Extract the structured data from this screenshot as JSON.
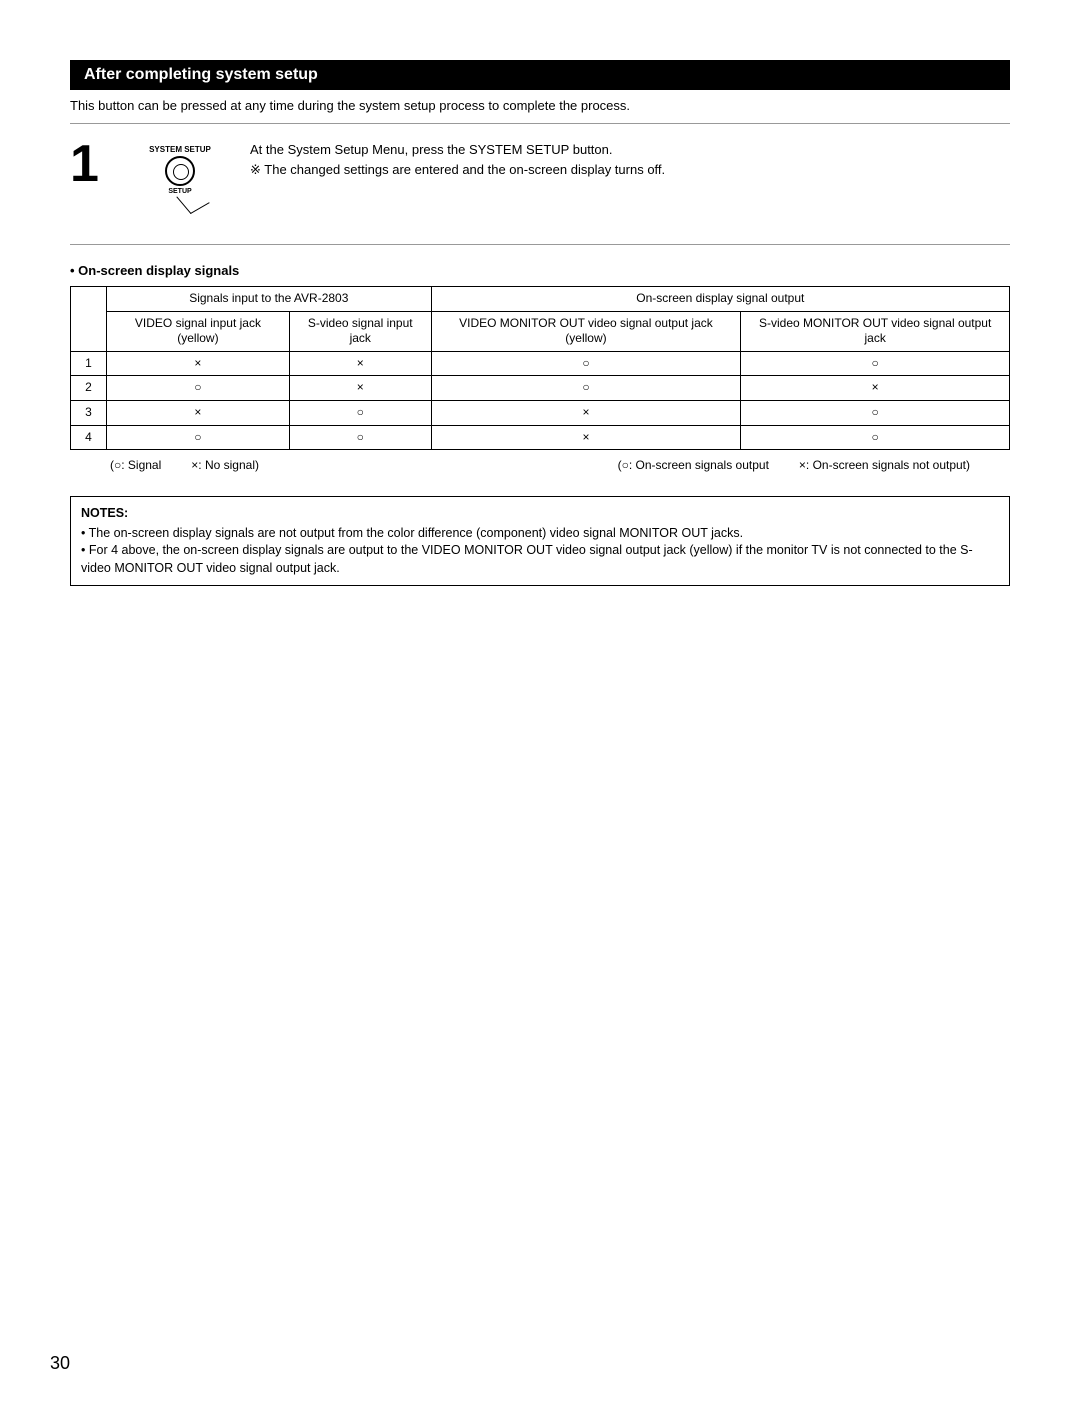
{
  "section_title": "After completing system setup",
  "intro": "This button can be pressed at any time during the system setup process to complete the process.",
  "step": {
    "number": "1",
    "remote": {
      "top_label": "SYSTEM\nSETUP",
      "bottom_label": "SETUP"
    },
    "line1": "At the System Setup Menu, press the SYSTEM SETUP button.",
    "line2_mark": "※",
    "line2": "The changed settings are entered and the on-screen display turns off."
  },
  "subheading": "On-screen display signals",
  "table": {
    "head_group_left": "Signals input to the AVR-2803",
    "head_group_right": "On-screen display signal output",
    "col1": "VIDEO signal input jack (yellow)",
    "col2": "S-video signal input jack",
    "col3": "VIDEO MONITOR OUT video signal output jack (yellow)",
    "col4": "S-video MONITOR OUT video signal output jack",
    "rows": [
      {
        "n": "1",
        "c1": "×",
        "c2": "×",
        "c3": "○",
        "c4": "○"
      },
      {
        "n": "2",
        "c1": "○",
        "c2": "×",
        "c3": "○",
        "c4": "×"
      },
      {
        "n": "3",
        "c1": "×",
        "c2": "○",
        "c3": "×",
        "c4": "○"
      },
      {
        "n": "4",
        "c1": "○",
        "c2": "○",
        "c3": "×",
        "c4": "○"
      }
    ]
  },
  "legend": {
    "left_a": "(○: Signal",
    "left_b": "×: No signal)",
    "right_a": "(○: On-screen signals output",
    "right_b": "×: On-screen signals not output)"
  },
  "notes": {
    "title": "NOTES:",
    "items": [
      "The on-screen display signals are not output from the color difference (component) video signal MONITOR OUT jacks.",
      "For 4 above, the on-screen display signals are output to the VIDEO MONITOR OUT video signal output jack (yellow) if the monitor TV is not connected to the S-video MONITOR OUT video signal output jack."
    ]
  },
  "page_number": "30"
}
